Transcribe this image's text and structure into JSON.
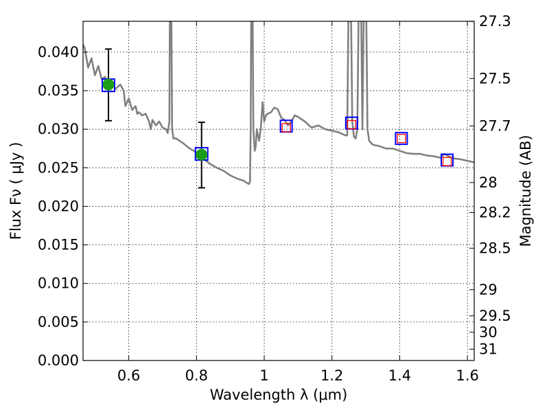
{
  "chart_data": {
    "type": "scatter",
    "title": "",
    "xlabel": "Wavelength  λ (μm)",
    "ylabel": "Flux  Fν ( μJy )",
    "y2label": "Magnitude (AB)",
    "xlim": [
      0.465,
      1.62
    ],
    "ylim": [
      0.0,
      0.044
    ],
    "grid": true,
    "x_ticks": [
      0.6,
      0.8,
      1.0,
      1.2,
      1.4,
      1.6
    ],
    "x_tick_labels": [
      "0.6",
      "0.8",
      "1",
      "1.2",
      "1.4",
      "1.6"
    ],
    "y_ticks": [
      0.0,
      0.005,
      0.01,
      0.015,
      0.02,
      0.025,
      0.03,
      0.035,
      0.04
    ],
    "y_tick_labels": [
      "0.000",
      "0.005",
      "0.010",
      "0.015",
      "0.020",
      "0.025",
      "0.030",
      "0.035",
      "0.040"
    ],
    "y2_tick_labels": [
      {
        "label": "27.3",
        "flux": 0.04398
      },
      {
        "label": "27.5",
        "flux": 0.03658
      },
      {
        "label": "27.7",
        "flux": 0.03043
      },
      {
        "label": "28",
        "flux": 0.02308
      },
      {
        "label": "28.2",
        "flux": 0.0192
      },
      {
        "label": "28.5",
        "flux": 0.01457
      },
      {
        "label": "29",
        "flux": 0.00919
      },
      {
        "label": "29.5",
        "flux": 0.0058
      },
      {
        "label": "30",
        "flux": 0.00366
      },
      {
        "label": "31",
        "flux": 0.00146
      }
    ],
    "model_spectrum": {
      "color": "#808080",
      "x": [
        0.465,
        0.47,
        0.48,
        0.49,
        0.5,
        0.51,
        0.52,
        0.53,
        0.54,
        0.55,
        0.56,
        0.575,
        0.585,
        0.59,
        0.6,
        0.61,
        0.62,
        0.625,
        0.63,
        0.64,
        0.65,
        0.66,
        0.665,
        0.67,
        0.68,
        0.69,
        0.7,
        0.71,
        0.715,
        0.72,
        0.722,
        0.725,
        0.728,
        0.732,
        0.74,
        0.76,
        0.78,
        0.8,
        0.82,
        0.84,
        0.86,
        0.88,
        0.9,
        0.92,
        0.94,
        0.95,
        0.955,
        0.958,
        0.96,
        0.962,
        0.965,
        0.968,
        0.972,
        0.975,
        0.978,
        0.98,
        0.985,
        0.99,
        0.995,
        1.0,
        1.005,
        1.01,
        1.02,
        1.03,
        1.04,
        1.05,
        1.06,
        1.07,
        1.08,
        1.09,
        1.1,
        1.12,
        1.14,
        1.16,
        1.18,
        1.2,
        1.22,
        1.24,
        1.245,
        1.25,
        1.255,
        1.26,
        1.265,
        1.27,
        1.275,
        1.28,
        1.285,
        1.29,
        1.295,
        1.3,
        1.305,
        1.31,
        1.32,
        1.34,
        1.36,
        1.38,
        1.4,
        1.42,
        1.44,
        1.46,
        1.48,
        1.5,
        1.52,
        1.525,
        1.53,
        1.54,
        1.56,
        1.58,
        1.6,
        1.62
      ],
      "y": [
        0.041,
        0.0405,
        0.038,
        0.0392,
        0.037,
        0.0382,
        0.0365,
        0.0368,
        0.0358,
        0.0363,
        0.0352,
        0.0358,
        0.035,
        0.033,
        0.034,
        0.0325,
        0.033,
        0.032,
        0.0322,
        0.0318,
        0.032,
        0.031,
        0.03,
        0.0312,
        0.0305,
        0.031,
        0.0302,
        0.03,
        0.0295,
        0.031,
        0.05,
        0.05,
        0.03,
        0.0288,
        0.0288,
        0.0282,
        0.0275,
        0.027,
        0.0262,
        0.0255,
        0.025,
        0.0246,
        0.024,
        0.0236,
        0.0233,
        0.023,
        0.0229,
        0.0232,
        0.03,
        0.05,
        0.05,
        0.03,
        0.0272,
        0.0278,
        0.03,
        0.0295,
        0.0285,
        0.0302,
        0.0335,
        0.031,
        0.0318,
        0.032,
        0.0322,
        0.0328,
        0.0326,
        0.0315,
        0.0312,
        0.0305,
        0.031,
        0.0318,
        0.0316,
        0.031,
        0.0302,
        0.0305,
        0.03,
        0.0298,
        0.0296,
        0.0292,
        0.0292,
        0.05,
        0.05,
        0.031,
        0.029,
        0.0288,
        0.03,
        0.05,
        0.05,
        0.03,
        0.05,
        0.05,
        0.03,
        0.0285,
        0.028,
        0.0278,
        0.0275,
        0.0275,
        0.0272,
        0.0269,
        0.0268,
        0.0268,
        0.0266,
        0.0265,
        0.0263,
        0.0264,
        0.0268,
        0.0266,
        0.0262,
        0.0261,
        0.0259,
        0.0257
      ]
    },
    "detections": {
      "marker_color": "#1a9e1a",
      "box_color": "#0000ff",
      "points": [
        {
          "x": 0.54,
          "y": 0.0358,
          "y_err_low": 0.0311,
          "y_err_high": 0.0404,
          "model": 0.0357
        },
        {
          "x": 0.815,
          "y": 0.0267,
          "y_err_low": 0.0224,
          "y_err_high": 0.0309,
          "model": 0.0268
        }
      ]
    },
    "upper_limits": {
      "marker_color": "#ff0000",
      "box_color": "#0000ff",
      "points": [
        {
          "x": 1.065,
          "y": 0.0302,
          "model": 0.0304
        },
        {
          "x": 1.258,
          "y": 0.0306,
          "model": 0.0308
        },
        {
          "x": 1.405,
          "y": 0.0288,
          "model": 0.0288
        },
        {
          "x": 1.54,
          "y": 0.0258,
          "model": 0.026
        }
      ]
    }
  }
}
